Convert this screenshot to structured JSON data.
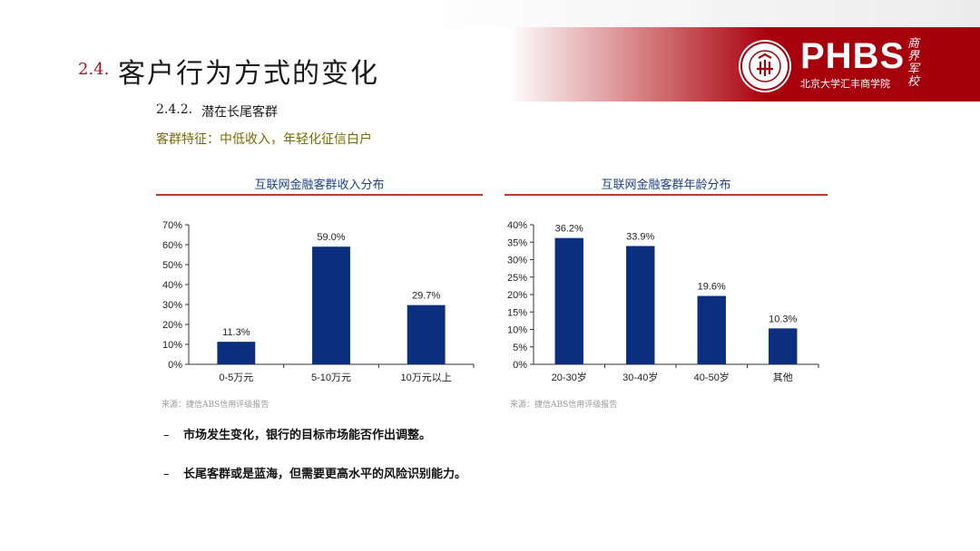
{
  "brand": {
    "name": "PHBS",
    "subtitle": "北京大学汇丰商学院",
    "calligraphy": "商界军校",
    "seal_text": "PEKING UNIVERSITY",
    "seal_year": "1898",
    "accent_color": "#a3000c"
  },
  "section": {
    "number": "2.4.",
    "title": "客户行为方式的变化"
  },
  "subsection": {
    "number": "2.4.2.",
    "title": "潜在长尾客群"
  },
  "feature_line": "客群特征：中低收入，年轻化征信白户",
  "chart_data": [
    {
      "type": "bar",
      "title": "互联网金融客群收入分布",
      "categories": [
        "0-5万元",
        "5-10万元",
        "10万元以上"
      ],
      "values": [
        11.3,
        59.0,
        29.7
      ],
      "value_labels": [
        "11.3%",
        "59.0%",
        "29.7%"
      ],
      "ylim": [
        0,
        70
      ],
      "yticks": [
        "0%",
        "10%",
        "20%",
        "30%",
        "40%",
        "50%",
        "60%",
        "70%"
      ],
      "color": "#0b2f7e",
      "source": "来源：捷信ABS信用评级报告"
    },
    {
      "type": "bar",
      "title": "互联网金融客群年龄分布",
      "categories": [
        "20-30岁",
        "30-40岁",
        "40-50岁",
        "其他"
      ],
      "values": [
        36.2,
        33.9,
        19.6,
        10.3
      ],
      "value_labels": [
        "36.2%",
        "33.9%",
        "19.6%",
        "10.3%"
      ],
      "ylim": [
        0,
        40
      ],
      "yticks": [
        "0%",
        "5%",
        "10%",
        "15%",
        "20%",
        "25%",
        "30%",
        "35%",
        "40%"
      ],
      "color": "#0b2f7e",
      "source": "来源：捷信ABS信用评级报告"
    }
  ],
  "bullets": [
    {
      "dash": "–",
      "text": "市场发生变化，银行的目标市场能否作出调整。"
    },
    {
      "dash": "–",
      "text": "长尾客群或是蓝海，但需要更高水平的风险识别能力。"
    }
  ]
}
